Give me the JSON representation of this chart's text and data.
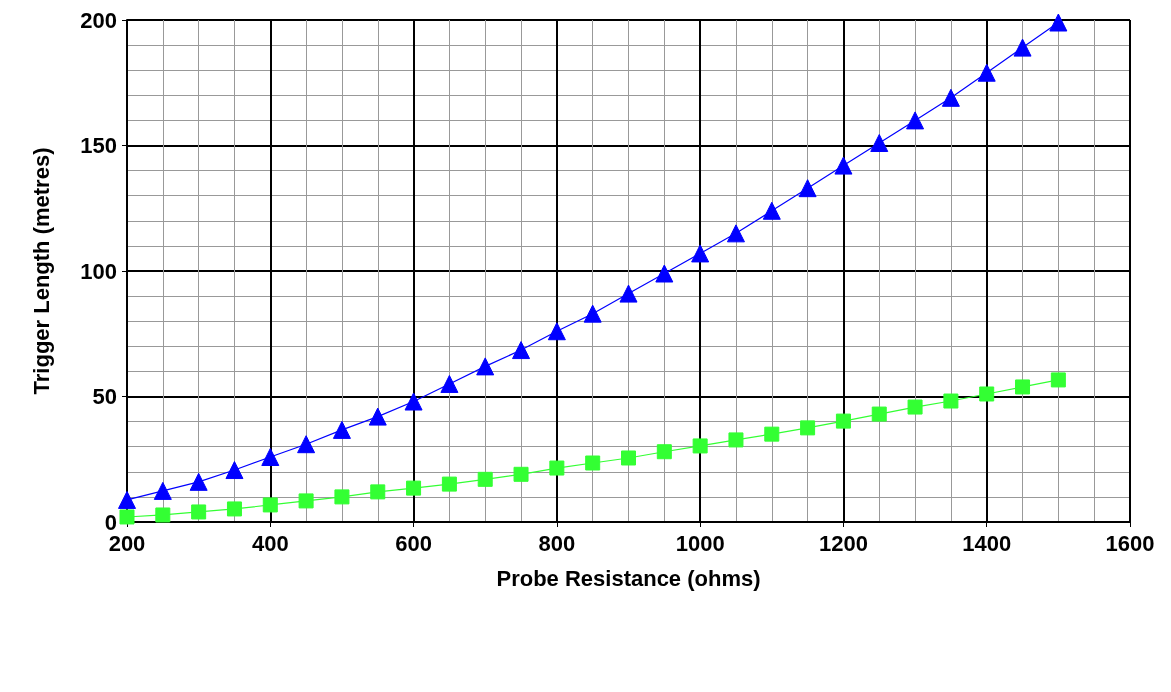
{
  "chart_data": {
    "type": "line",
    "xlabel": "Probe Resistance (ohms)",
    "ylabel": "Trigger Length (metres)",
    "x": [
      200,
      250,
      300,
      350,
      400,
      450,
      500,
      550,
      600,
      650,
      700,
      750,
      800,
      850,
      900,
      950,
      1000,
      1050,
      1100,
      1150,
      1200,
      1250,
      1300,
      1350,
      1400,
      1450,
      1500
    ],
    "series": [
      {
        "color": "#0000ff",
        "marker": "triangle",
        "values": [
          8.8,
          12.4,
          16,
          20.7,
          25.9,
          31,
          36.7,
          42,
          48,
          55,
          62,
          68.5,
          76,
          83,
          91,
          99,
          107,
          115,
          124,
          133,
          142,
          151,
          160,
          169,
          179,
          189,
          199
        ]
      },
      {
        "color": "#33ff33",
        "marker": "square",
        "values": [
          2,
          2.8,
          4,
          5.2,
          6.8,
          8.4,
          10,
          12,
          13.5,
          15.1,
          17,
          19,
          21.5,
          23.5,
          25.5,
          28,
          30.3,
          32.7,
          35,
          37.5,
          40.2,
          43,
          45.8,
          48.2,
          51,
          53.8,
          56.6
        ]
      }
    ],
    "xlim": [
      200,
      1600
    ],
    "xticks": [
      200,
      400,
      600,
      800,
      1000,
      1200,
      1400,
      1600
    ],
    "ylim": [
      0,
      200
    ],
    "yticks": [
      0,
      50,
      100,
      150,
      200
    ],
    "grid": true
  }
}
